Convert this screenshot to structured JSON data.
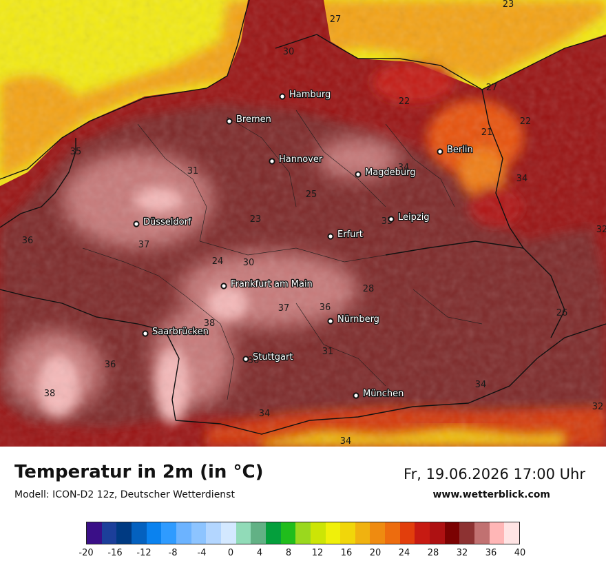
{
  "map": {
    "cities": [
      {
        "name": "Hamburg"
      },
      {
        "name": "Bremen"
      },
      {
        "name": "Hannover"
      },
      {
        "name": "Berlin"
      },
      {
        "name": "Magdeburg"
      },
      {
        "name": "Düsseldorf"
      },
      {
        "name": "Leipzig"
      },
      {
        "name": "Erfurt"
      },
      {
        "name": "Frankfurt am Main"
      },
      {
        "name": "Nürnberg"
      },
      {
        "name": "Saarbrücken"
      },
      {
        "name": "Stuttgart"
      },
      {
        "name": "München"
      }
    ],
    "value_labels": [
      "23",
      "27",
      "30",
      "22",
      "27",
      "21",
      "22",
      "35",
      "31",
      "34",
      "34",
      "25",
      "36",
      "37",
      "23",
      "30",
      "24",
      "35",
      "32",
      "28",
      "37",
      "36",
      "38",
      "31",
      "26",
      "36",
      "38",
      "36",
      "34",
      "34",
      "34",
      "32"
    ]
  },
  "footer": {
    "title": "Temperatur in 2m (in °C)",
    "subtitle": "Modell: ICON-D2 12z, Deutscher Wetterdienst",
    "datetime": "Fr, 19.06.2026 17:00 Uhr",
    "website": "www.wetterblick.com"
  },
  "legend": {
    "colors": [
      "#3a0f87",
      "#1c3f9a",
      "#003a82",
      "#0461bf",
      "#0a82ef",
      "#2f9bff",
      "#6cb3ff",
      "#8dc4ff",
      "#b3d6ff",
      "#d3e8ff",
      "#91dbb8",
      "#62b185",
      "#049f3c",
      "#20bd1c",
      "#9ad81e",
      "#cce506",
      "#f0f00a",
      "#f1d60a",
      "#f0b210",
      "#ef8b10",
      "#ed6c0e",
      "#e23e0c",
      "#c71a12",
      "#ae1112",
      "#7b0202",
      "#8d3232",
      "#c17171",
      "#ffb6b6",
      "#ffe4e4"
    ],
    "ticks": [
      "-20",
      "-16",
      "-12",
      "-8",
      "-4",
      "0",
      "4",
      "8",
      "12",
      "16",
      "20",
      "24",
      "28",
      "32",
      "36",
      "40"
    ]
  }
}
